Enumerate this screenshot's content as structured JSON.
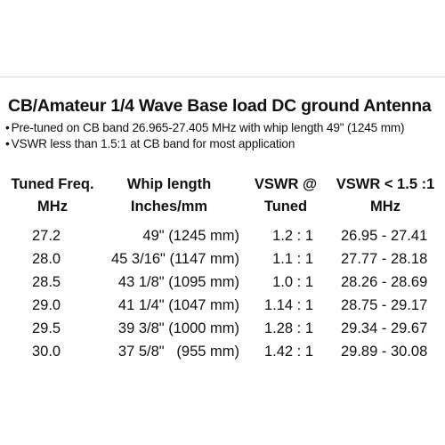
{
  "title": "CB/Amateur 1/4 Wave Base load DC ground Antenna",
  "bullets": [
    "Pre-tuned on CB band 26.965-27.405 MHz with whip length 49\" (1245 mm)",
    "VSWR less than 1.5:1 at CB band for most application"
  ],
  "table": {
    "headers": [
      {
        "line1": "Tuned Freq.",
        "line2": "MHz"
      },
      {
        "line1": "Whip length",
        "line2": "Inches/mm"
      },
      {
        "line1": "VSWR @",
        "line2": "Tuned"
      },
      {
        "line1": "VSWR < 1.5 :1",
        "line2": "MHz"
      }
    ],
    "rows": [
      {
        "freq": "27.2",
        "whip": "49\" (1245 mm)",
        "vswr": "1.2 : 1",
        "range": "26.95 - 27.41"
      },
      {
        "freq": "28.0",
        "whip": "45 3/16\" (1147 mm)",
        "vswr": "1.1 : 1",
        "range": "27.77 - 28.18"
      },
      {
        "freq": "28.5",
        "whip": "43 1/8\" (1095 mm)",
        "vswr": "1.0 : 1",
        "range": "28.26 - 28.69"
      },
      {
        "freq": "29.0",
        "whip": "41 1/4\" (1047 mm)",
        "vswr": "1.14 : 1",
        "range": "28.75 - 29.17"
      },
      {
        "freq": "29.5",
        "whip": "39 3/8\" (1000 mm)",
        "vswr": "1.28 : 1",
        "range": "29.34 - 29.67"
      },
      {
        "freq": "30.0",
        "whip": "37 5/8\"   (955 mm)",
        "vswr": "1.42 : 1",
        "range": "29.89 - 30.08"
      }
    ]
  }
}
